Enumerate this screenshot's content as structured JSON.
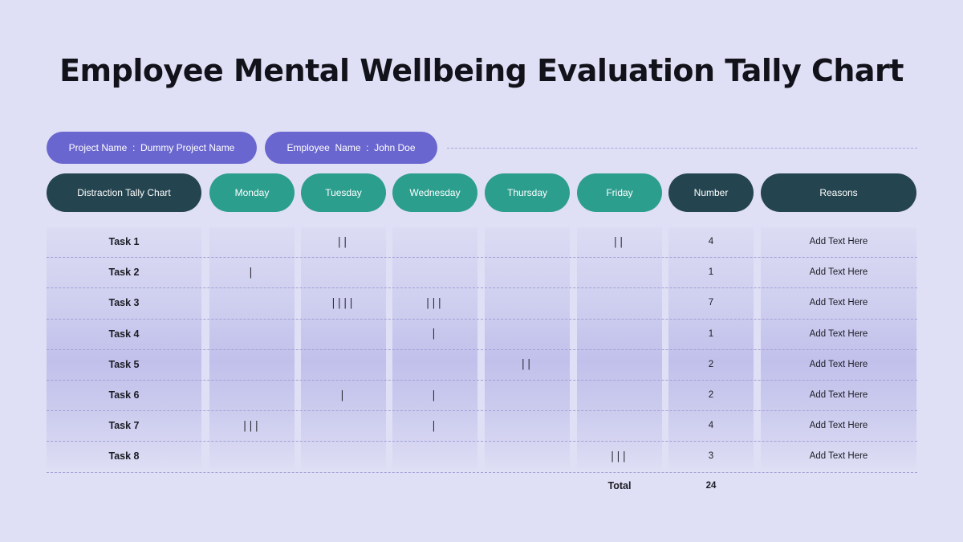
{
  "title": "Employee Mental Wellbeing Evaluation Tally Chart",
  "project": {
    "label": "Project Name  :  Dummy Project Name"
  },
  "employee": {
    "label": "Employee  Name  :  John Doe"
  },
  "headers": {
    "distraction": "Distraction Tally Chart",
    "monday": "Monday",
    "tuesday": "Tuesday",
    "wednesday": "Wednesday",
    "thursday": "Thursday",
    "friday": "Friday",
    "number": "Number",
    "reasons": "Reasons"
  },
  "rows": [
    {
      "task": "Task 1",
      "mon": "",
      "tue": "||",
      "wed": "",
      "thu": "",
      "fri": "||",
      "number": "4",
      "reason": "Add Text Here"
    },
    {
      "task": "Task 2",
      "mon": "|",
      "tue": "",
      "wed": "",
      "thu": "",
      "fri": "",
      "number": "1",
      "reason": "Add Text Here"
    },
    {
      "task": "Task 3",
      "mon": "",
      "tue": "||||",
      "wed": "|||",
      "thu": "",
      "fri": "",
      "number": "7",
      "reason": "Add Text Here"
    },
    {
      "task": "Task 4",
      "mon": "",
      "tue": "",
      "wed": "|",
      "thu": "",
      "fri": "",
      "number": "1",
      "reason": "Add Text Here"
    },
    {
      "task": "Task 5",
      "mon": "",
      "tue": "",
      "wed": "",
      "thu": "||",
      "fri": "",
      "number": "2",
      "reason": "Add Text Here"
    },
    {
      "task": "Task 6",
      "mon": "",
      "tue": "|",
      "wed": "|",
      "thu": "",
      "fri": "",
      "number": "2",
      "reason": "Add Text Here"
    },
    {
      "task": "Task 7",
      "mon": "|||",
      "tue": "",
      "wed": "|",
      "thu": "",
      "fri": "",
      "number": "4",
      "reason": "Add Text Here"
    },
    {
      "task": "Task 8",
      "mon": "",
      "tue": "",
      "wed": "",
      "thu": "",
      "fri": "|||",
      "number": "3",
      "reason": "Add Text Here"
    }
  ],
  "total": {
    "label": "Total",
    "value": "24"
  },
  "colors": {
    "background": "#dfdff5",
    "info_pill": "#6a66cf",
    "header_dark": "#24444f",
    "header_teal": "#2c9e8e"
  }
}
